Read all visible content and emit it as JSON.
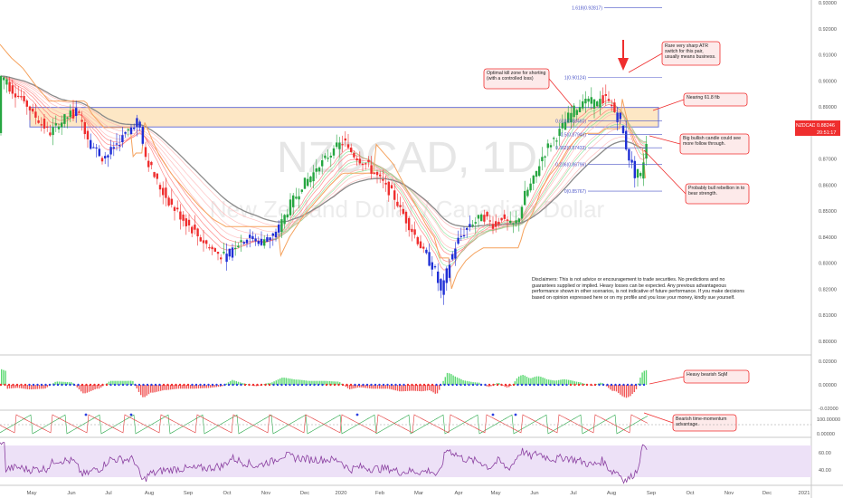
{
  "chart_data": {
    "type": "candlestick",
    "symbol": "NZDCAD",
    "timeframe": "1D",
    "watermark_symbol": "NZDCAD, 1D",
    "watermark_sub": "New Zealand Dollar / Canadian Dollar",
    "last_price": "0.88246",
    "countdown": "20:51:17",
    "price_ticks": [
      "0.93000",
      "0.92000",
      "0.91000",
      "0.90000",
      "0.89000",
      "0.88000",
      "0.87000",
      "0.86000",
      "0.85000",
      "0.84000",
      "0.83000",
      "0.82000",
      "0.81000",
      "0.80000"
    ],
    "sqz_ticks": [
      "0.02000",
      "0.00000",
      "-0.02000"
    ],
    "tm_ticks": [
      "100.00000",
      "0.00000"
    ],
    "rsi_ticks": [
      "60.00",
      "40.00"
    ],
    "x_labels": [
      "May",
      "Jun",
      "Jul",
      "Aug",
      "Sep",
      "Oct",
      "Nov",
      "Dec",
      "2020",
      "Feb",
      "Mar",
      "Apr",
      "May",
      "Jun",
      "Jul",
      "Aug",
      "Sep",
      "Oct",
      "Nov",
      "Dec",
      "2021"
    ],
    "ylim": [
      0.797,
      0.931
    ],
    "fib_levels": [
      {
        "label": "1.618(0.92817)",
        "value": 0.92817
      },
      {
        "label": "1(0.90124)",
        "value": 0.90124
      },
      {
        "label": "0.618(0.88460)",
        "value": 0.8846
      },
      {
        "label": "0.5(0.87946)",
        "value": 0.87946
      },
      {
        "label": "0.382(0.87433)",
        "value": 0.87433
      },
      {
        "label": "0.236(0.86796)",
        "value": 0.86796
      },
      {
        "label": "0(0.85767)",
        "value": 0.85767
      }
    ],
    "zone": {
      "high": 0.8898,
      "low": 0.8823
    },
    "price_path": [
      [
        0,
        0.902
      ],
      [
        12,
        0.897
      ],
      [
        25,
        0.893
      ],
      [
        40,
        0.886
      ],
      [
        55,
        0.88
      ],
      [
        70,
        0.885
      ],
      [
        85,
        0.889
      ],
      [
        100,
        0.876
      ],
      [
        115,
        0.87
      ],
      [
        130,
        0.876
      ],
      [
        145,
        0.882
      ],
      [
        152,
        0.885
      ],
      [
        160,
        0.872
      ],
      [
        175,
        0.86
      ],
      [
        190,
        0.852
      ],
      [
        205,
        0.846
      ],
      [
        220,
        0.84
      ],
      [
        235,
        0.835
      ],
      [
        250,
        0.832
      ],
      [
        262,
        0.838
      ],
      [
        275,
        0.84
      ],
      [
        290,
        0.838
      ],
      [
        305,
        0.841
      ],
      [
        320,
        0.852
      ],
      [
        335,
        0.86
      ],
      [
        350,
        0.866
      ],
      [
        365,
        0.872
      ],
      [
        380,
        0.877
      ],
      [
        390,
        0.872
      ],
      [
        405,
        0.868
      ],
      [
        420,
        0.862
      ],
      [
        435,
        0.856
      ],
      [
        450,
        0.846
      ],
      [
        460,
        0.84
      ],
      [
        472,
        0.832
      ],
      [
        480,
        0.828
      ],
      [
        488,
        0.818
      ],
      [
        495,
        0.828
      ],
      [
        505,
        0.838
      ],
      [
        515,
        0.843
      ],
      [
        525,
        0.846
      ],
      [
        535,
        0.848
      ],
      [
        545,
        0.845
      ],
      [
        555,
        0.848
      ],
      [
        565,
        0.844
      ],
      [
        572,
        0.846
      ],
      [
        580,
        0.856
      ],
      [
        590,
        0.862
      ],
      [
        598,
        0.87
      ],
      [
        608,
        0.876
      ],
      [
        618,
        0.88
      ],
      [
        628,
        0.886
      ],
      [
        638,
        0.89
      ],
      [
        648,
        0.892
      ],
      [
        660,
        0.891
      ],
      [
        670,
        0.894
      ],
      [
        678,
        0.889
      ],
      [
        686,
        0.884
      ],
      [
        694,
        0.872
      ],
      [
        702,
        0.864
      ],
      [
        708,
        0.862
      ],
      [
        716,
        0.88
      ]
    ],
    "annotations": [
      "Rare very sharp ATR switch for this pair, usually means business.",
      "Optimal kill zone for shorting (with a controlled loss)",
      "Nearing 61.8 fib",
      "Big bullish candle could see more follow through.",
      "Probably bull rebellion in to bear strength.",
      "Heavy bearish SqM",
      "Bearish time-momentum advantage."
    ],
    "disclaimer": "Disclaimers: This is not advice or encouragement to trade securities. No predictions and no guarantees supplied or implied. Heavy losses can be expected. Any previous advantageous performance shown in other scenarios, is not indicative of future performance. If you make decisions based on opinion expressed here or on my profile and you lose your money, kindly sue yourself.",
    "colors": {
      "bull": "#26a641",
      "bear": "#ef2e2e",
      "blue": "#1f2fd6",
      "atr": "#f5a25d",
      "fib": "#4c56c8",
      "zone_fill": "#fde7c5",
      "sqz_pos": "#3fd15a",
      "sqz_neg": "#ef3b3b",
      "rsi_band": "#ede1f7",
      "rsi_line": "#8a3fa0"
    }
  }
}
